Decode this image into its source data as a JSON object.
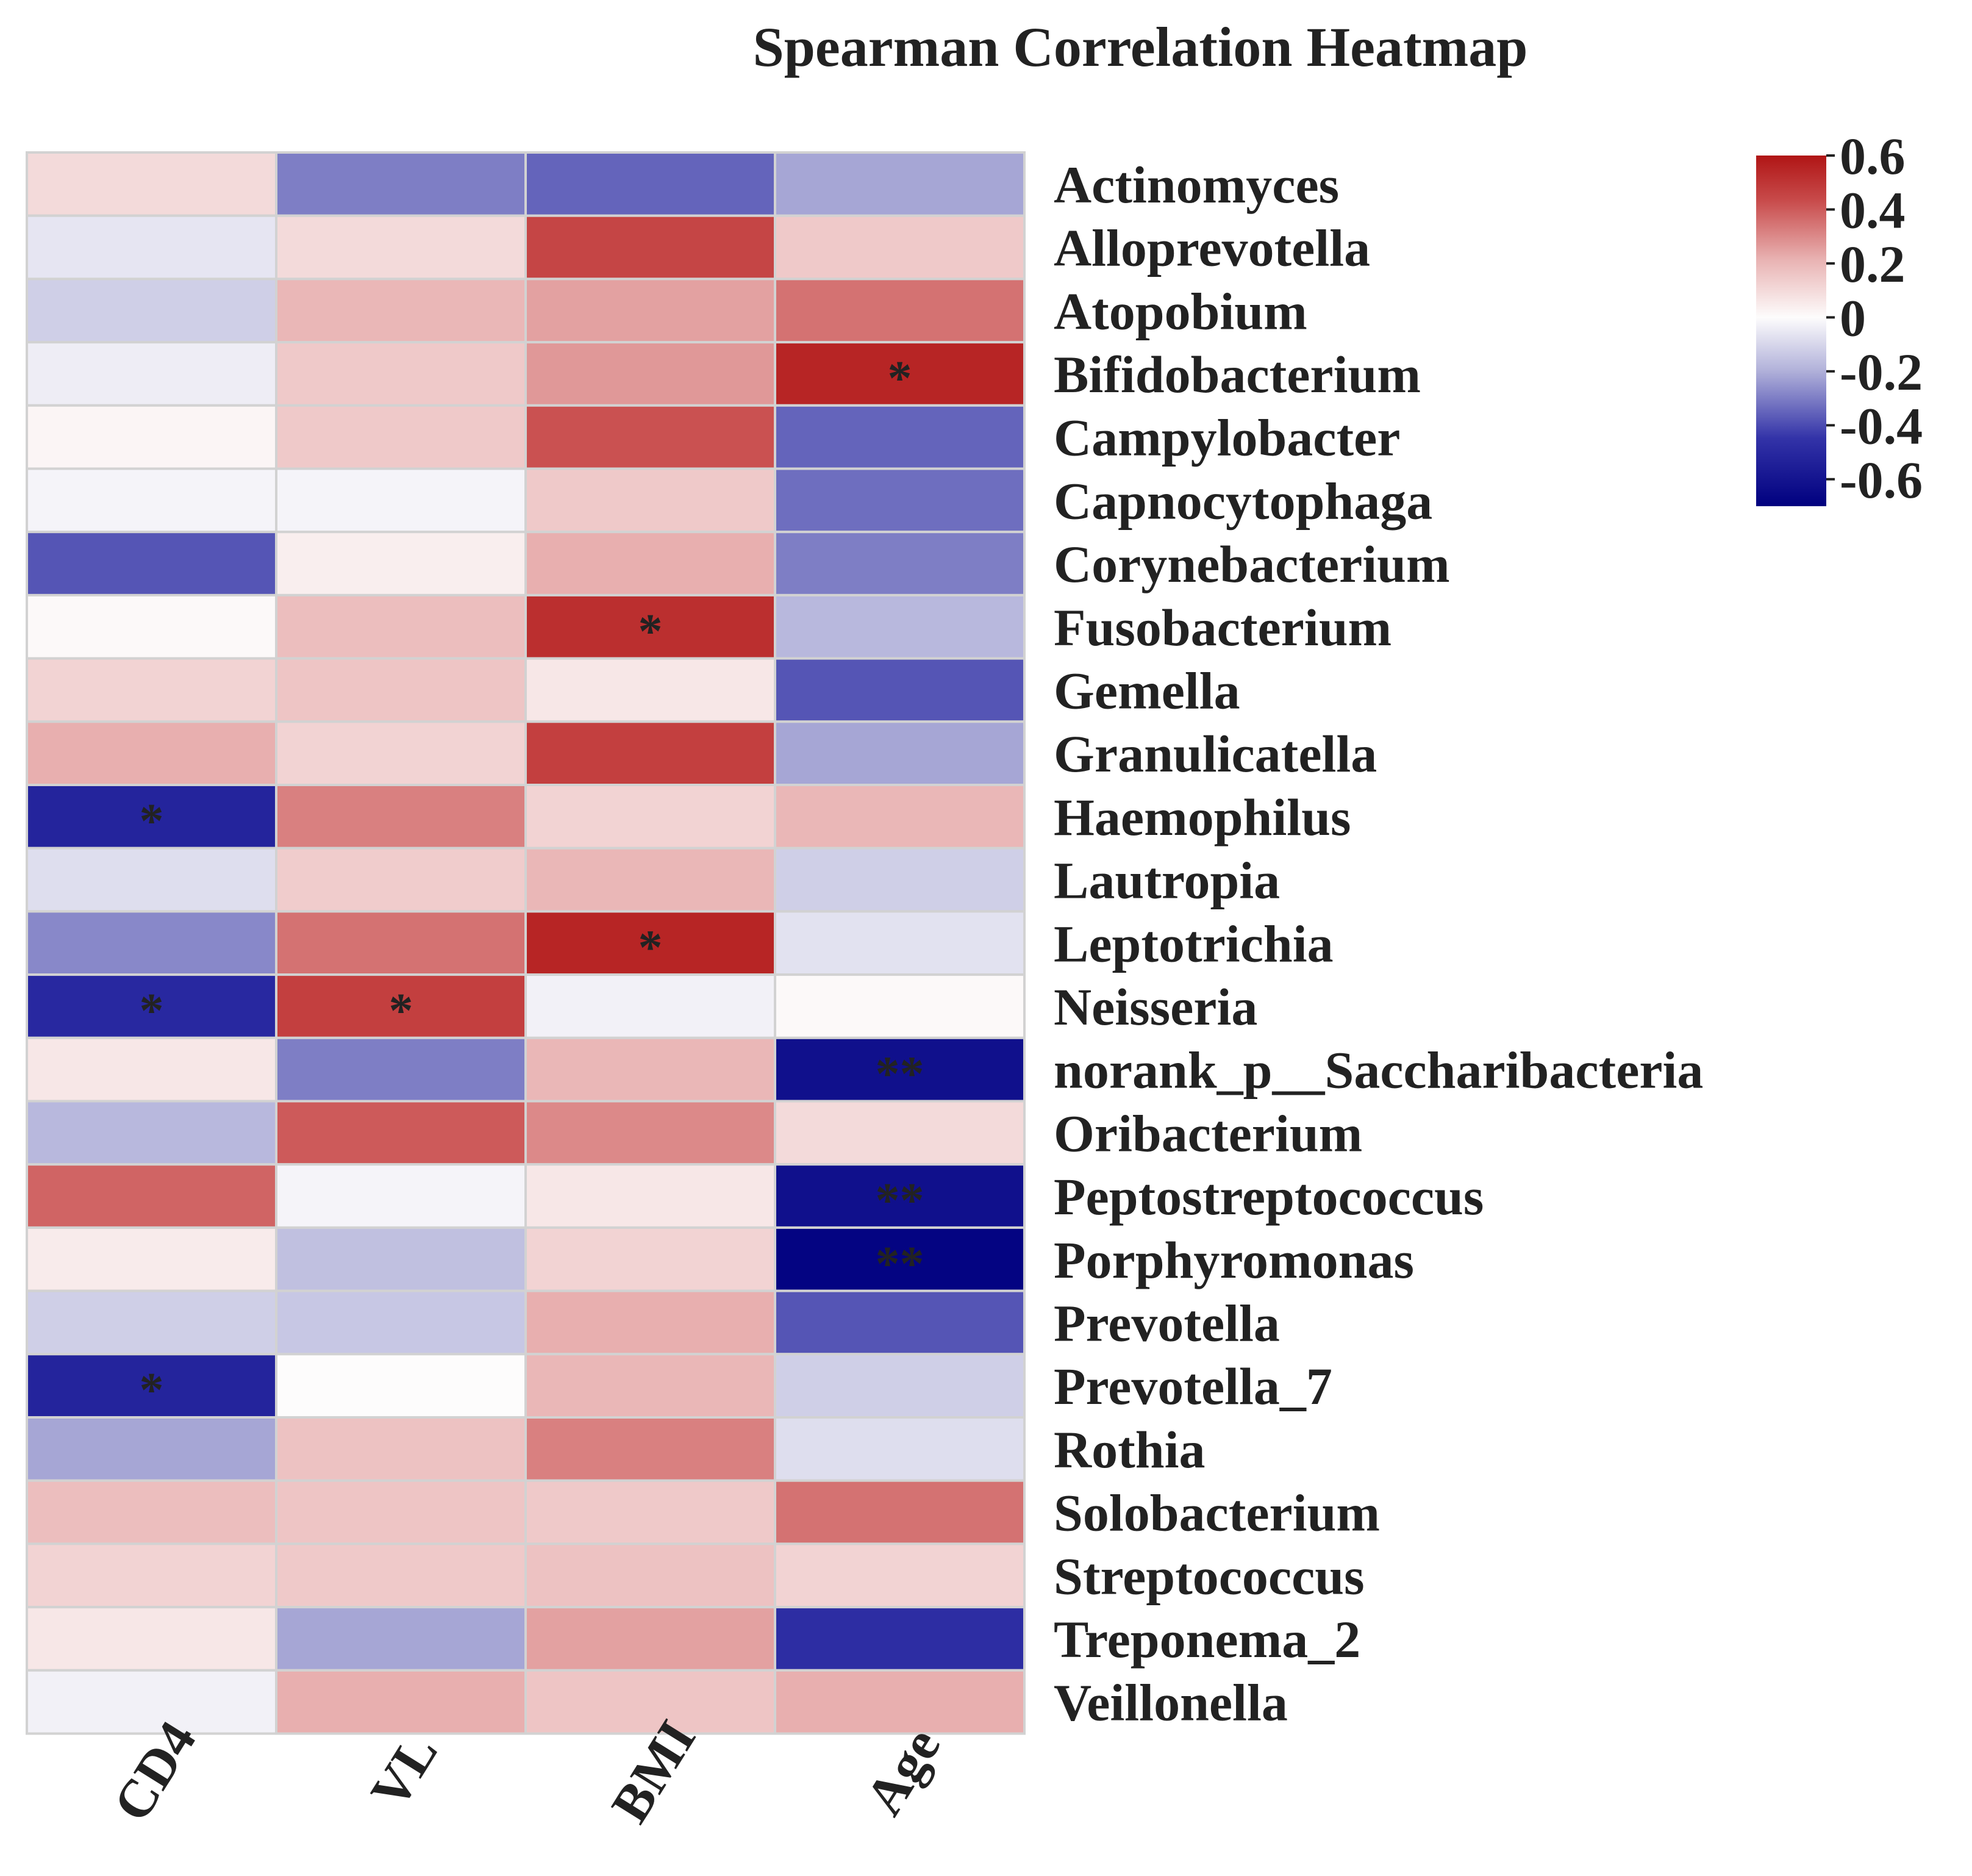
{
  "chart_data": {
    "type": "heatmap",
    "title": "Spearman Correlation Heatmap",
    "columns": [
      "CD4",
      "VL",
      "BMI",
      "Age"
    ],
    "rows": [
      "Actinomyces",
      "Alloprevotella",
      "Atopobium",
      "Bifidobacterium",
      "Campylobacter",
      "Capnocytophaga",
      "Corynebacterium",
      "Fusobacterium",
      "Gemella",
      "Granulicatella",
      "Haemophilus",
      "Lautropia",
      "Leptotrichia",
      "Neisseria",
      "norank_p__Saccharibacteria",
      "Oribacterium",
      "Peptostreptococcus",
      "Porphyromonas",
      "Prevotella",
      "Prevotella_7",
      "Rothia",
      "Solobacterium",
      "Streptococcus",
      "Treponema_2",
      "Veillonella"
    ],
    "values": [
      [
        0.1,
        -0.3,
        -0.35,
        -0.22
      ],
      [
        -0.06,
        0.1,
        0.45,
        0.15
      ],
      [
        -0.12,
        0.2,
        0.25,
        0.35
      ],
      [
        -0.04,
        0.15,
        0.27,
        0.55
      ],
      [
        0.02,
        0.15,
        0.42,
        -0.35
      ],
      [
        -0.02,
        -0.02,
        0.15,
        -0.33
      ],
      [
        -0.38,
        0.04,
        0.22,
        -0.3
      ],
      [
        0.01,
        0.18,
        0.52,
        -0.18
      ],
      [
        0.12,
        0.16,
        0.06,
        -0.38
      ],
      [
        0.22,
        0.12,
        0.47,
        -0.22
      ],
      [
        -0.52,
        0.32,
        0.12,
        0.2
      ],
      [
        -0.08,
        0.14,
        0.2,
        -0.12
      ],
      [
        -0.28,
        0.35,
        0.55,
        -0.07
      ],
      [
        -0.5,
        0.47,
        -0.03,
        0.01
      ],
      [
        0.06,
        -0.3,
        0.2,
        -0.62
      ],
      [
        -0.18,
        0.4,
        0.3,
        0.1
      ],
      [
        0.38,
        -0.02,
        0.06,
        -0.62
      ],
      [
        0.05,
        -0.16,
        0.12,
        -0.68
      ],
      [
        -0.12,
        -0.14,
        0.22,
        -0.38
      ],
      [
        -0.52,
        0.0,
        0.2,
        -0.12
      ],
      [
        -0.22,
        0.17,
        0.32,
        -0.08
      ],
      [
        0.18,
        0.16,
        0.15,
        0.35
      ],
      [
        0.12,
        0.15,
        0.17,
        0.12
      ],
      [
        0.06,
        -0.22,
        0.25,
        -0.48
      ],
      [
        -0.03,
        0.22,
        0.16,
        0.22
      ]
    ],
    "significance": [
      [
        "",
        "",
        "",
        ""
      ],
      [
        "",
        "",
        "",
        ""
      ],
      [
        "",
        "",
        "",
        ""
      ],
      [
        "",
        "",
        "",
        "*"
      ],
      [
        "",
        "",
        "",
        ""
      ],
      [
        "",
        "",
        "",
        ""
      ],
      [
        "",
        "",
        "",
        ""
      ],
      [
        "",
        "",
        "*",
        ""
      ],
      [
        "",
        "",
        "",
        ""
      ],
      [
        "",
        "",
        "",
        ""
      ],
      [
        "*",
        "",
        "",
        ""
      ],
      [
        "",
        "",
        "",
        ""
      ],
      [
        "",
        "",
        "*",
        ""
      ],
      [
        "*",
        "*",
        "",
        ""
      ],
      [
        "",
        "",
        "",
        "**"
      ],
      [
        "",
        "",
        "",
        ""
      ],
      [
        "",
        "",
        "",
        "**"
      ],
      [
        "",
        "",
        "",
        "**"
      ],
      [
        "",
        "",
        "",
        ""
      ],
      [
        "*",
        "",
        "",
        ""
      ],
      [
        "",
        "",
        "",
        ""
      ],
      [
        "",
        "",
        "",
        ""
      ],
      [
        "",
        "",
        "",
        ""
      ],
      [
        "",
        "",
        "",
        ""
      ],
      [
        "",
        "",
        "",
        ""
      ]
    ],
    "colorbar": {
      "min": -0.7,
      "max": 0.6,
      "ticks": [
        0.6,
        0.4,
        0.2,
        0,
        -0.2,
        -0.4,
        -0.6
      ],
      "tick_labels": [
        "0.6",
        "0.4",
        "0.2",
        "0",
        "-0.2",
        "-0.4",
        "-0.6"
      ],
      "colors": [
        "#00007f",
        "#3333a8",
        "#b2b2da",
        "#fdfcfc",
        "#e9b4b4",
        "#c84b4b",
        "#b01515"
      ]
    }
  }
}
